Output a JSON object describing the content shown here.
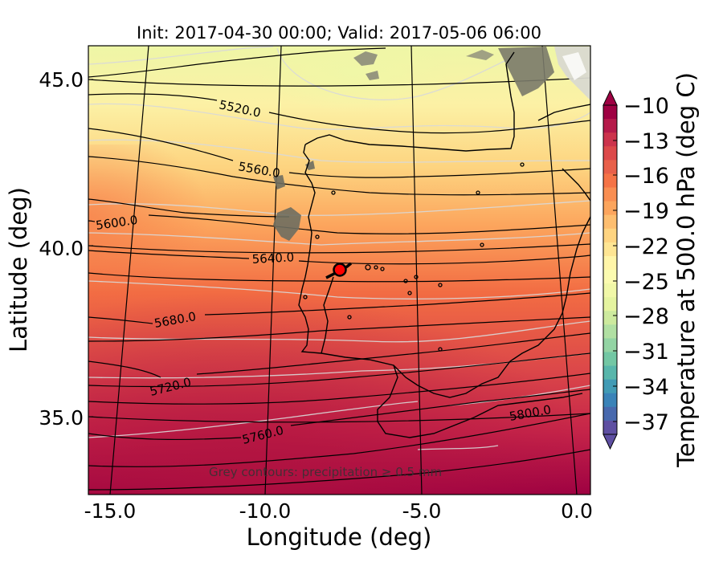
{
  "title": "Init: 2017-04-30 00:00; Valid: 2017-05-06 06:00",
  "xlabel": "Longitude (deg)",
  "ylabel": "Latitude (deg)",
  "x_ticks": [
    "-15.0",
    "-10.0",
    "-5.0",
    "0.0"
  ],
  "y_ticks": [
    "45.0",
    "40.0",
    "35.0"
  ],
  "colorbar": {
    "label": "Temperature at 500.0 hPa (deg C)",
    "ticks": [
      "−10",
      "−13",
      "−16",
      "−19",
      "−22",
      "−25",
      "−28",
      "−31",
      "−34",
      "−37"
    ],
    "colormap": "Spectral",
    "extend": "both"
  },
  "contour_labels": [
    "5520.0",
    "5560.0",
    "5600.0",
    "5640.0",
    "5680.0",
    "5720.0",
    "5760.0",
    "5800.0"
  ],
  "annotation": "Grey contours: precipitation ≥ 0.5 mm",
  "colors": {
    "warm": "#9e0142",
    "cool": "#ffffbf",
    "cold": "#5e4fa2",
    "marker": "#ff0000",
    "geo_contour": "#000000",
    "temp_contour": "#d9d9d9"
  },
  "chart_data": {
    "type": "heatmap",
    "title": "Init: 2017-04-30 00:00; Valid: 2017-05-06 06:00",
    "xlabel": "Longitude (deg)",
    "ylabel": "Latitude (deg)",
    "xlim": [
      -16.0,
      0.3
    ],
    "ylim": [
      32.7,
      46.1
    ],
    "field": "Temperature at 500.0 hPa (deg C)",
    "field_range": [
      -37,
      -10
    ],
    "geopotential_contours": [
      5520.0,
      5560.0,
      5600.0,
      5640.0,
      5680.0,
      5720.0,
      5760.0,
      5800.0
    ],
    "marker": {
      "lon": -7.7,
      "lat": 39.4
    },
    "precip_threshold_mm": 0.5
  }
}
